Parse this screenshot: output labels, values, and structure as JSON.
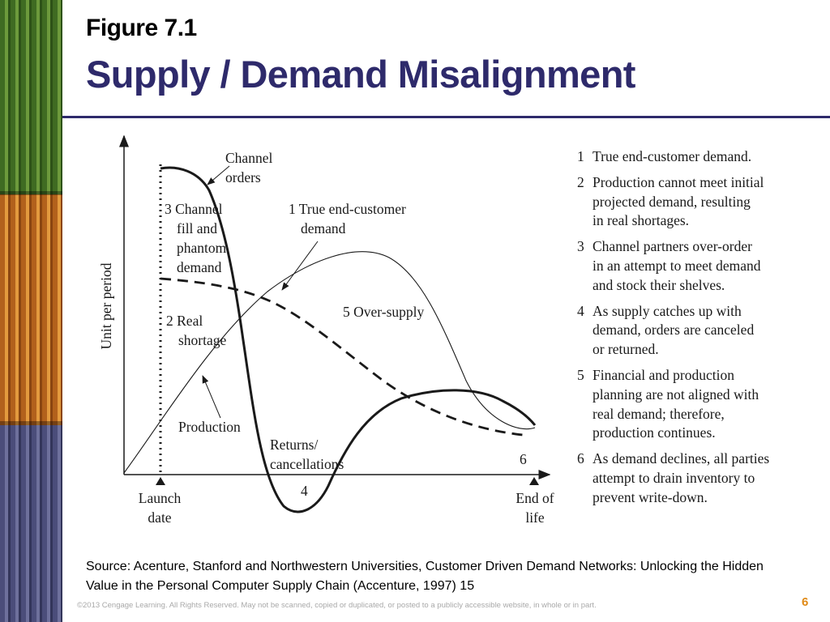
{
  "slide": {
    "figure_label": "Figure 7.1",
    "title": "Supply / Demand Misalignment",
    "page_number": "6"
  },
  "diagram": {
    "y_axis_label": "Unit per period",
    "x_launch": [
      "Launch",
      "date"
    ],
    "x_end": [
      "End of",
      "life"
    ],
    "labels": {
      "channel_orders": [
        "Channel",
        "orders"
      ],
      "channel_fill": [
        "3 Channel",
        "fill and",
        "phantom",
        "demand"
      ],
      "true_demand": [
        "1 True end-customer",
        "demand"
      ],
      "real_shortage": [
        "2 Real",
        "shortage"
      ],
      "oversupply": "5 Over-supply",
      "production": "Production",
      "returns": [
        "Returns/",
        "cancellations"
      ],
      "four": "4",
      "six": "6"
    }
  },
  "legend": [
    {
      "num": "1",
      "lines": [
        "True end-customer demand."
      ]
    },
    {
      "num": "2",
      "lines": [
        "Production cannot meet initial",
        "projected demand, resulting",
        "in real shortages."
      ]
    },
    {
      "num": "3",
      "lines": [
        "Channel partners over-order",
        "in an attempt to meet demand",
        "and stock their shelves."
      ]
    },
    {
      "num": "4",
      "lines": [
        "As supply catches up with",
        "demand, orders are canceled",
        "or returned."
      ]
    },
    {
      "num": "5",
      "lines": [
        "Financial and production",
        "planning are not aligned with",
        "real demand; therefore,",
        "production continues."
      ]
    },
    {
      "num": "6",
      "lines": [
        "As demand declines, all parties",
        "attempt to drain inventory to",
        "prevent write-down."
      ]
    }
  ],
  "footer": {
    "source": "Source: Acenture, Stanford and Northwestern Universities, Customer Driven Demand Networks: Unlocking the Hidden Value in the Personal Computer Supply Chain (Accenture, 1997) 15",
    "copyright": "©2013 Cengage Learning. All Rights Reserved. May not be scanned, copied or duplicated, or posted to a publicly accessible website, in whole or in part."
  },
  "colors": {
    "title": "#2e2a6b",
    "page_number": "#e08a16"
  }
}
